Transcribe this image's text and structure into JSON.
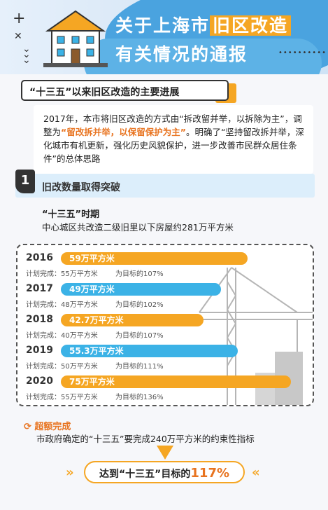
{
  "header": {
    "title_line1_pre": "关于上海市",
    "title_line1_hl": "旧区改造",
    "title_line2": "有关情况的通报"
  },
  "section": {
    "heading": "“十三五”以来旧区改造的主要进展",
    "intro_part1": "2017年，本市将旧区改造的方式由“拆改留并举，以拆除为主”，调整为",
    "intro_emphasis": "“留改拆并举，以保留保护为主”",
    "intro_part2": "。明确了“坚持留改拆并举，深化城市有机更新，强化历史风貌保护，进一步改善市民群众居住条件”的总体思路"
  },
  "subsection": {
    "number": "1",
    "title": "旧改数量取得突破",
    "period": "“十三五”时期",
    "period_desc": "中心城区共改造二级旧里以下房屋约281万平方米"
  },
  "bars": [
    {
      "year": "2016",
      "label": "59万平方米",
      "value": 59,
      "plan": "计划完成：55万平方米",
      "pct": "为目标的107%",
      "color": "orange"
    },
    {
      "year": "2017",
      "label": "49万平方米",
      "value": 49,
      "plan": "计划完成：48万平方米",
      "pct": "为目标的102%",
      "color": "blue"
    },
    {
      "year": "2018",
      "label": "42.7万平方米",
      "value": 42.7,
      "plan": "计划完成：40万平方米",
      "pct": "为目标的107%",
      "color": "orange"
    },
    {
      "year": "2019",
      "label": "55.3万平方米",
      "value": 55.3,
      "plan": "计划完成：50万平方米",
      "pct": "为目标的111%",
      "color": "blue"
    },
    {
      "year": "2020",
      "label": "75万平方米",
      "value": 75,
      "plan": "计划完成：55万平方米",
      "pct": "为目标的136%",
      "color": "orange"
    }
  ],
  "over": {
    "title": "超额完成",
    "desc": "市政府确定的“十三五”要完成240万平方米的约束性指标",
    "result_pre": "达到“十三五”目标的",
    "result_pct": "117%"
  },
  "colors": {
    "orange": "#f5a623",
    "blue": "#3bb2e6",
    "accent": "#e8731f"
  }
}
